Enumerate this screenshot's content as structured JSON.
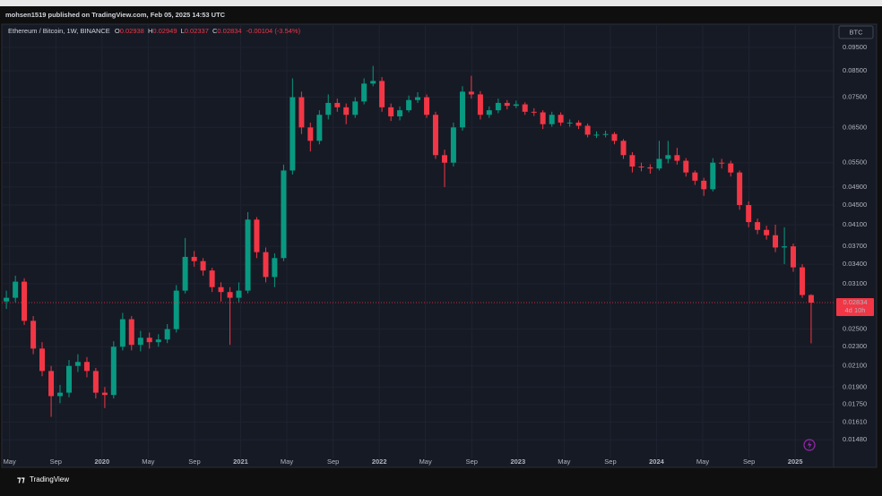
{
  "header": {
    "publisher": "mohsen1519 published on TradingView.com, Feb 05, 2025 14:53 UTC"
  },
  "footer": {
    "brand": "TradingView"
  },
  "chart_data": {
    "type": "candlestick",
    "title": "Ethereum / Bitcoin, 1W, BINANCE",
    "ohlc_labels": [
      "O",
      "H",
      "L",
      "C"
    ],
    "change_label": "-0.00104 (-3.54%)",
    "currency": "BTC",
    "countdown": "4d 10h",
    "up_color": "#089981",
    "down_color": "#f23645",
    "log_scale": true,
    "grid": true,
    "xlim": [
      2019.277,
      2025.277
    ],
    "ylim": [
      0.0139,
      0.106
    ],
    "xticks": [
      {
        "value": 2019.333,
        "label": "May"
      },
      {
        "value": 2019.667,
        "label": "Sep"
      },
      2020,
      {
        "value": 2020.333,
        "label": "May"
      },
      {
        "value": 2020.667,
        "label": "Sep"
      },
      2021,
      {
        "value": 2021.333,
        "label": "May"
      },
      {
        "value": 2021.667,
        "label": "Sep"
      },
      2022,
      {
        "value": 2022.333,
        "label": "May"
      },
      {
        "value": 2022.667,
        "label": "Sep"
      },
      2023,
      {
        "value": 2023.333,
        "label": "May"
      },
      {
        "value": 2023.667,
        "label": "Sep"
      },
      2024,
      {
        "value": 2024.333,
        "label": "May"
      },
      {
        "value": 2024.667,
        "label": "Sep"
      },
      2025
    ],
    "yticks": [
      {
        "value": 0.095,
        "label": "0.09500"
      },
      {
        "value": 0.085,
        "label": "0.08500"
      },
      {
        "value": 0.075,
        "label": "0.07500"
      },
      {
        "value": 0.065,
        "label": "0.06500"
      },
      {
        "value": 0.055,
        "label": "0.05500"
      },
      {
        "value": 0.049,
        "label": "0.04900"
      },
      {
        "value": 0.045,
        "label": "0.04500"
      },
      {
        "value": 0.041,
        "label": "0.04100"
      },
      {
        "value": 0.037,
        "label": "0.03700"
      },
      {
        "value": 0.034,
        "label": "0.03400"
      },
      {
        "value": 0.031,
        "label": "0.03100"
      },
      {
        "value": 0.025,
        "label": "0.02500"
      },
      {
        "value": 0.023,
        "label": "0.02300"
      },
      {
        "value": 0.021,
        "label": "0.02100"
      },
      {
        "value": 0.019,
        "label": "0.01900"
      },
      {
        "value": 0.0175,
        "label": "0.01750"
      },
      {
        "value": 0.0161,
        "label": "0.01610"
      },
      {
        "value": 0.0148,
        "label": "0.01480"
      }
    ],
    "x": [
      2019.31,
      2019.375,
      2019.439,
      2019.504,
      2019.568,
      2019.633,
      2019.697,
      2019.762,
      2019.826,
      2019.891,
      2019.955,
      2020.02,
      2020.084,
      2020.149,
      2020.213,
      2020.278,
      2020.342,
      2020.407,
      2020.471,
      2020.536,
      2020.6,
      2020.665,
      2020.729,
      2020.794,
      2020.858,
      2020.923,
      2020.987,
      2021.052,
      2021.116,
      2021.181,
      2021.245,
      2021.31,
      2021.374,
      2021.439,
      2021.503,
      2021.568,
      2021.632,
      2021.697,
      2021.761,
      2021.826,
      2021.89,
      2021.955,
      2022.019,
      2022.084,
      2022.148,
      2022.213,
      2022.277,
      2022.342,
      2022.406,
      2022.471,
      2022.535,
      2022.6,
      2022.664,
      2022.729,
      2022.793,
      2022.858,
      2022.922,
      2022.987,
      2023.051,
      2023.116,
      2023.18,
      2023.245,
      2023.309,
      2023.374,
      2023.438,
      2023.503,
      2023.567,
      2023.632,
      2023.696,
      2023.761,
      2023.825,
      2023.89,
      2023.954,
      2024.019,
      2024.083,
      2024.148,
      2024.212,
      2024.277,
      2024.341,
      2024.406,
      2024.47,
      2024.535,
      2024.599,
      2024.664,
      2024.728,
      2024.793,
      2024.857,
      2024.922,
      2024.986,
      2025.051,
      2025.115
    ],
    "open": [
      0.0285,
      0.029,
      0.0313,
      0.026,
      0.0228,
      0.0205,
      0.0182,
      0.0185,
      0.021,
      0.0214,
      0.0205,
      0.0185,
      0.0183,
      0.023,
      0.0262,
      0.0232,
      0.024,
      0.0235,
      0.0238,
      0.025,
      0.03,
      0.0352,
      0.0345,
      0.033,
      0.0305,
      0.0298,
      0.029,
      0.03,
      0.042,
      0.036,
      0.032,
      0.035,
      0.053,
      0.075,
      0.065,
      0.061,
      0.069,
      0.073,
      0.0715,
      0.069,
      0.0735,
      0.08,
      0.081,
      0.0715,
      0.0685,
      0.0705,
      0.074,
      0.075,
      0.069,
      0.057,
      0.055,
      0.065,
      0.077,
      0.076,
      0.069,
      0.0705,
      0.073,
      0.072,
      0.0725,
      0.07,
      0.0698,
      0.066,
      0.069,
      0.0665,
      0.0665,
      0.0655,
      0.0628,
      0.0628,
      0.063,
      0.061,
      0.057,
      0.054,
      0.0538,
      0.0535,
      0.056,
      0.057,
      0.0555,
      0.0525,
      0.0505,
      0.0485,
      0.055,
      0.0548,
      0.0525,
      0.045,
      0.0415,
      0.04,
      0.039,
      0.0368,
      0.037,
      0.0335,
      0.02938
    ],
    "high": [
      0.03,
      0.0322,
      0.0318,
      0.0266,
      0.0235,
      0.021,
      0.0192,
      0.0216,
      0.0222,
      0.0219,
      0.0208,
      0.019,
      0.0236,
      0.027,
      0.0266,
      0.0248,
      0.0246,
      0.0244,
      0.0256,
      0.0308,
      0.0385,
      0.0362,
      0.035,
      0.0334,
      0.0312,
      0.0305,
      0.0312,
      0.0435,
      0.0425,
      0.0368,
      0.0358,
      0.0545,
      0.082,
      0.077,
      0.0665,
      0.0705,
      0.076,
      0.0745,
      0.0728,
      0.075,
      0.082,
      0.087,
      0.0825,
      0.0728,
      0.0718,
      0.0756,
      0.0768,
      0.076,
      0.07,
      0.0585,
      0.0665,
      0.079,
      0.083,
      0.0772,
      0.0718,
      0.0745,
      0.074,
      0.0738,
      0.0732,
      0.0712,
      0.0705,
      0.07,
      0.0698,
      0.0675,
      0.0672,
      0.0662,
      0.0638,
      0.064,
      0.0636,
      0.0615,
      0.0578,
      0.055,
      0.0546,
      0.061,
      0.061,
      0.059,
      0.0562,
      0.053,
      0.0512,
      0.0562,
      0.056,
      0.0555,
      0.053,
      0.0458,
      0.0422,
      0.0408,
      0.041,
      0.0405,
      0.0375,
      0.034,
      0.02949
    ],
    "low": [
      0.0275,
      0.0284,
      0.0255,
      0.0222,
      0.02,
      0.0165,
      0.0176,
      0.0181,
      0.0204,
      0.0199,
      0.018,
      0.0172,
      0.018,
      0.0226,
      0.0226,
      0.0225,
      0.0228,
      0.023,
      0.0234,
      0.0246,
      0.0296,
      0.0336,
      0.0322,
      0.0298,
      0.0285,
      0.0232,
      0.0284,
      0.0296,
      0.035,
      0.0312,
      0.0305,
      0.0345,
      0.052,
      0.063,
      0.058,
      0.06,
      0.0675,
      0.07,
      0.066,
      0.068,
      0.0725,
      0.079,
      0.07,
      0.067,
      0.0672,
      0.0698,
      0.073,
      0.068,
      0.056,
      0.049,
      0.054,
      0.064,
      0.0745,
      0.0675,
      0.068,
      0.0695,
      0.0708,
      0.0712,
      0.069,
      0.0686,
      0.0645,
      0.0652,
      0.0655,
      0.0652,
      0.0645,
      0.062,
      0.0618,
      0.062,
      0.06,
      0.056,
      0.0525,
      0.0528,
      0.0522,
      0.053,
      0.0548,
      0.0545,
      0.0515,
      0.0495,
      0.047,
      0.048,
      0.0535,
      0.0515,
      0.044,
      0.0405,
      0.0392,
      0.0382,
      0.036,
      0.034,
      0.0328,
      0.029,
      0.02337
    ],
    "close": [
      0.029,
      0.0313,
      0.026,
      0.0228,
      0.0205,
      0.0182,
      0.0185,
      0.021,
      0.0214,
      0.0205,
      0.0185,
      0.0183,
      0.023,
      0.0262,
      0.0232,
      0.024,
      0.0235,
      0.0238,
      0.025,
      0.03,
      0.0352,
      0.0345,
      0.033,
      0.0305,
      0.0298,
      0.029,
      0.03,
      0.042,
      0.036,
      0.032,
      0.035,
      0.053,
      0.075,
      0.065,
      0.061,
      0.069,
      0.073,
      0.0715,
      0.069,
      0.0735,
      0.08,
      0.081,
      0.0715,
      0.0685,
      0.0705,
      0.074,
      0.075,
      0.069,
      0.057,
      0.055,
      0.065,
      0.077,
      0.076,
      0.069,
      0.0705,
      0.073,
      0.072,
      0.0725,
      0.07,
      0.0698,
      0.066,
      0.069,
      0.0665,
      0.0665,
      0.0655,
      0.0628,
      0.0628,
      0.063,
      0.061,
      0.057,
      0.054,
      0.0538,
      0.0535,
      0.056,
      0.057,
      0.0555,
      0.0525,
      0.0505,
      0.0485,
      0.055,
      0.0548,
      0.0525,
      0.045,
      0.0415,
      0.04,
      0.039,
      0.0368,
      0.037,
      0.0335,
      0.02938,
      0.02834
    ]
  }
}
